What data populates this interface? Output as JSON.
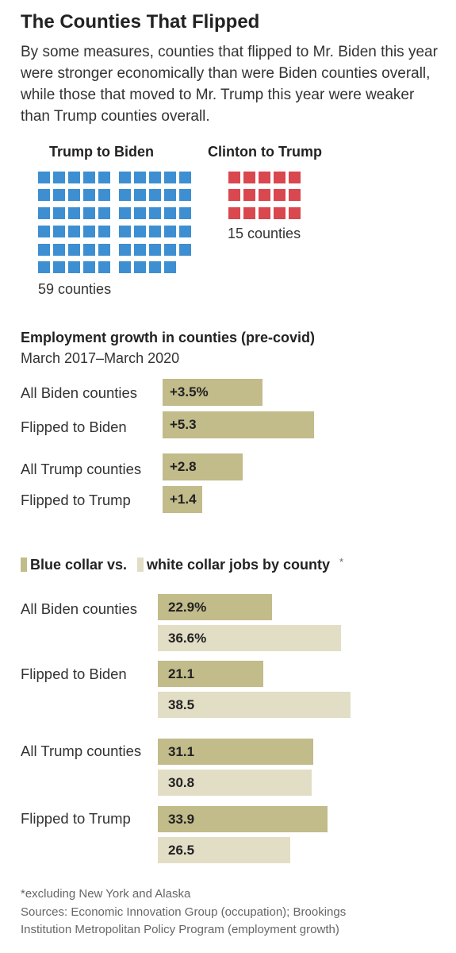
{
  "header": {
    "title": "The Counties That Flipped",
    "subtitle": "By some measures, counties that flipped to Mr. Biden this year were stronger economically than were Biden counties overall, while those that moved to Mr. Trump this year were weaker than Trump counties overall."
  },
  "waffle": {
    "trump_to_biden": {
      "label": "Trump to Biden",
      "count_label": "59 counties",
      "count": 59,
      "color": "#3d8fd1"
    },
    "clinton_to_trump": {
      "label": "Clinton to Trump",
      "count_label": "15 counties",
      "count": 15,
      "color": "#d9474f"
    }
  },
  "employment": {
    "title": "Employment growth in counties (pre-covid)",
    "subtitle": "March 2017–March 2020"
  },
  "collar": {
    "legend_blue": "Blue collar vs.",
    "legend_white": "white collar jobs by county",
    "legend_star": "*"
  },
  "colors": {
    "dark_bar": "#c2bb8a",
    "light_bar": "#e2dec6"
  },
  "footer": {
    "note": "*excluding New York and Alaska",
    "sources_line1": "Sources: Economic Innovation Group (occupation); Brookings",
    "sources_line2": "Institution Metropolitan Policy Program (employment growth)"
  },
  "chart_data": [
    {
      "type": "waffle",
      "categories": [
        "Trump to Biden",
        "Clinton to Trump"
      ],
      "values": [
        59,
        15
      ],
      "labels": [
        "59 counties",
        "15 counties"
      ]
    },
    {
      "type": "bar",
      "title": "Employment growth in counties (pre-covid)",
      "subtitle": "March 2017–March 2020",
      "categories": [
        "All Biden counties",
        "Flipped to Biden",
        "All Trump counties",
        "Flipped to Trump"
      ],
      "values": [
        3.5,
        5.3,
        2.8,
        1.4
      ],
      "value_labels": [
        "+3.5%",
        "+5.3",
        "+2.8",
        "+1.4"
      ]
    },
    {
      "type": "bar",
      "title": "Blue collar vs. white collar jobs by county*",
      "categories": [
        "All Biden counties",
        "Flipped to Biden",
        "All Trump counties",
        "Flipped to Trump"
      ],
      "series": [
        {
          "name": "Blue collar",
          "values": [
            22.9,
            21.1,
            31.1,
            33.9
          ],
          "value_labels": [
            "22.9%",
            "21.1",
            "31.1",
            "33.9"
          ]
        },
        {
          "name": "white collar",
          "values": [
            36.6,
            38.5,
            30.8,
            26.5
          ],
          "value_labels": [
            "36.6%",
            "38.5",
            "30.8",
            "26.5"
          ]
        }
      ]
    }
  ]
}
